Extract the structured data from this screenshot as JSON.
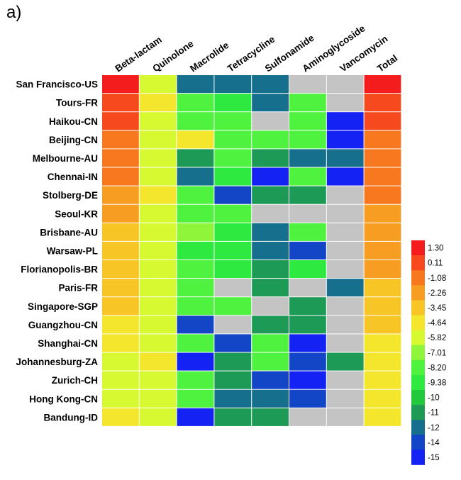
{
  "panel_label": "a)",
  "chart_data": {
    "type": "heatmap",
    "columns": [
      "Beta-lactam",
      "Quinolone",
      "Macrolide",
      "Tetracycline",
      "Sulfonamide",
      "Aminoglycoside",
      "Vancomycin",
      "Total"
    ],
    "rows": [
      "San Francisco-US",
      "Tours-FR",
      "Haikou-CN",
      "Beijing-CN",
      "Melbourne-AU",
      "Chennai-IN",
      "Stolberg-DE",
      "Seoul-KR",
      "Brisbane-AU",
      "Warsaw-PL",
      "Florianopolis-BR",
      "Paris-FR",
      "Singapore-SGP",
      "Guangzhou-CN",
      "Shanghai-CN",
      "Johannesburg-ZA",
      "Zurich-CH",
      "Hong Kong-CN",
      "Bandung-ID"
    ],
    "values": [
      [
        1.1,
        -5.6,
        -12,
        -12,
        -12,
        null,
        null,
        1.2
      ],
      [
        0.2,
        -4.4,
        -8.4,
        -9.6,
        -12,
        -8.4,
        null,
        0.3
      ],
      [
        0.3,
        -6.2,
        -8.4,
        -8.4,
        null,
        -8.4,
        -15,
        0.3
      ],
      [
        -0.6,
        -6.2,
        -4.3,
        -8.4,
        -8.4,
        -8.4,
        -15,
        -0.8
      ],
      [
        -0.6,
        -6.2,
        -11,
        -8.4,
        -11,
        -12,
        -12,
        -0.8
      ],
      [
        -0.6,
        -6.2,
        -12,
        -9.6,
        -15,
        -8.4,
        -15,
        -0.8
      ],
      [
        -1.8,
        -4.4,
        -8.4,
        -14,
        -11,
        -11,
        null,
        -0.8
      ],
      [
        -1.8,
        -6.2,
        -8.4,
        -8.4,
        null,
        null,
        null,
        -1.9
      ],
      [
        -3.0,
        -6.2,
        -6.5,
        -9.6,
        -12,
        -8.4,
        null,
        -1.9
      ],
      [
        -3.0,
        -6.2,
        -9.6,
        -9.6,
        -12,
        -14,
        null,
        -1.9
      ],
      [
        -3.0,
        -6.2,
        -8.4,
        -9.6,
        -11,
        -9.6,
        null,
        -1.9
      ],
      [
        -3.0,
        -6.2,
        -8.4,
        null,
        -11,
        null,
        -12,
        -3.2
      ],
      [
        -3.0,
        -6.2,
        -8.4,
        -8.4,
        null,
        -11,
        null,
        -3.2
      ],
      [
        -4.3,
        -6.2,
        -14,
        null,
        -11,
        -11,
        null,
        -3.2
      ],
      [
        -4.3,
        -6.2,
        -8.4,
        -14,
        -8.4,
        -15,
        null,
        -4.4
      ],
      [
        -6.2,
        -4.4,
        -15,
        -11,
        -8.4,
        -14,
        -11,
        -4.4
      ],
      [
        -6.2,
        -6.2,
        -8.4,
        -11,
        -14,
        -15,
        null,
        -4.4
      ],
      [
        -6.2,
        -6.2,
        -8.4,
        -12,
        -12,
        -14,
        null,
        -4.4
      ],
      [
        -4.3,
        -6.2,
        -15,
        -11,
        -11,
        null,
        null,
        -4.4
      ]
    ],
    "missing_color": "#c4c4c4",
    "legend": {
      "position": "right",
      "ticks": [
        "1.30",
        "0.11",
        "-1.08",
        "-2.26",
        "-3.45",
        "-4.64",
        "-5.82",
        "-7.01",
        "-8.20",
        "-9.38",
        "-10",
        "-11",
        "-12",
        "-14",
        "-15"
      ],
      "colors": [
        "#f41c1c",
        "#f6491e",
        "#f7781f",
        "#f79e22",
        "#f7c526",
        "#f4e62c",
        "#d6f931",
        "#8ef53a",
        "#4ff23e",
        "#2ee93f",
        "#22c93a",
        "#1d9a56",
        "#166f8c",
        "#1345c7",
        "#1522f4"
      ]
    }
  }
}
